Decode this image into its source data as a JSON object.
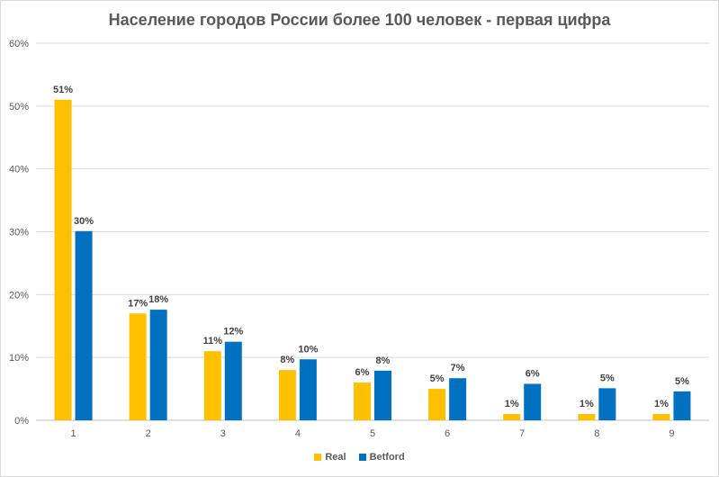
{
  "chart_data": {
    "type": "bar",
    "title": "Население городов России более 100 человек - первая цифра",
    "categories": [
      "1",
      "2",
      "3",
      "4",
      "5",
      "6",
      "7",
      "8",
      "9"
    ],
    "series": [
      {
        "name": "Real",
        "color": "#FFC000",
        "values": [
          51,
          17,
          11,
          8,
          6,
          5,
          1,
          1,
          1
        ],
        "data_labels": [
          "51%",
          "17%",
          "11%",
          "8%",
          "6%",
          "5%",
          "1%",
          "1%",
          "1%"
        ]
      },
      {
        "name": "Betford",
        "color": "#0070C0",
        "values": [
          30.1,
          17.6,
          12.5,
          9.7,
          7.9,
          6.7,
          5.8,
          5.1,
          4.6
        ],
        "data_labels": [
          "30%",
          "18%",
          "12%",
          "10%",
          "8%",
          "7%",
          "6%",
          "5%",
          "5%"
        ]
      }
    ],
    "y_ticks": [
      "0%",
      "10%",
      "20%",
      "30%",
      "40%",
      "50%",
      "60%"
    ],
    "ylim": [
      0,
      60
    ],
    "grid": true,
    "legend_position": "bottom"
  }
}
